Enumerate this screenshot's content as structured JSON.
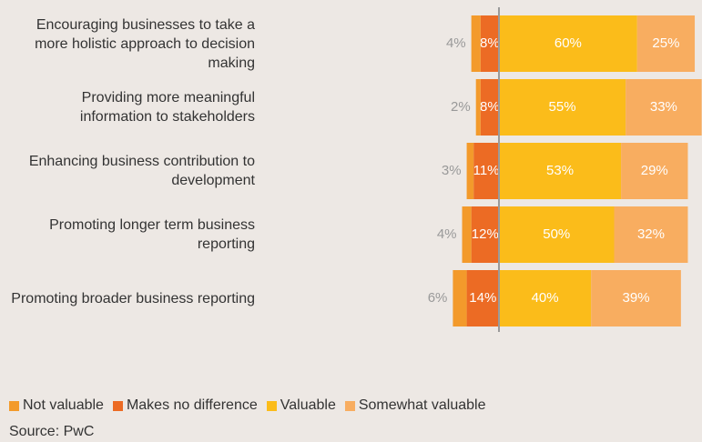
{
  "chart_data": {
    "type": "diverging_bar",
    "categories": [
      "Encouraging businesses to take a more holistic approach to decision making",
      "Providing more meaningful information to stakeholders",
      "Enhancing business contribution to development",
      "Promoting longer term business reporting",
      "Promoting broader business reporting"
    ],
    "series": [
      {
        "name": "Not valuable",
        "color": "#f39a2b",
        "values": [
          -4,
          -2,
          -3,
          -4,
          -6
        ],
        "value_labels": [
          "4%",
          "2%",
          "3%",
          "4%",
          "6%"
        ]
      },
      {
        "name": "Makes no difference",
        "color": "#ec6b24",
        "values": [
          -8,
          -8,
          -11,
          -12,
          -14
        ],
        "value_labels": [
          "8%",
          "8%",
          "11%",
          "12%",
          "14%"
        ]
      },
      {
        "name": "Valuable",
        "color": "#fbbc1a",
        "values": [
          60,
          55,
          53,
          50,
          40
        ],
        "value_labels": [
          "60%",
          "55%",
          "53%",
          "50%",
          "40%"
        ]
      },
      {
        "name": "Somewhat valuable",
        "color": "#f8ad60",
        "values": [
          25,
          33,
          29,
          32,
          39
        ],
        "value_labels": [
          "25%",
          "33%",
          "29%",
          "32%",
          "39%"
        ]
      }
    ],
    "source": "Source: PwC"
  }
}
